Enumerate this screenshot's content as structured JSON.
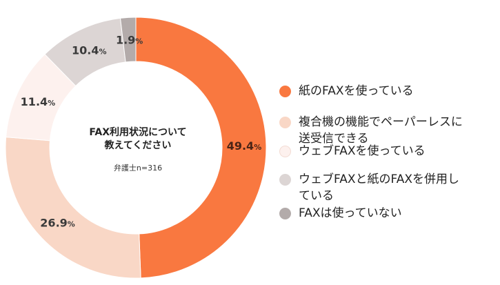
{
  "chart_data": {
    "type": "pie",
    "title_lines": [
      "FAX利用状況について",
      "教えてください"
    ],
    "subtitle": "弁護士n=316",
    "slices": [
      {
        "name": "紙のFAXを使っている",
        "value": 49.4,
        "color": "#F97840",
        "label_color": "#4A2416"
      },
      {
        "name": "複合機の機能でペーパーレスに送受信できる",
        "value": 26.9,
        "color": "#F9D7C6",
        "label_color": "#3A3A3A"
      },
      {
        "name": "ウェブFAXを使っている",
        "value": 11.4,
        "color": "#FDF1EE",
        "label_color": "#3A3A3A"
      },
      {
        "name": "ウェブFAXと紙のFAXを併用している",
        "value": 10.4,
        "color": "#DCD5D4",
        "label_color": "#3A3A3A"
      },
      {
        "name": "FAXは使っていない",
        "value": 1.9,
        "color": "#B3ABAA",
        "label_color": "#3A3A3A"
      }
    ],
    "unit": "%"
  },
  "legend": {
    "items": [
      {
        "lines": [
          "紙のFAXを使っている"
        ]
      },
      {
        "lines": [
          "複合機の機能でペーパーレスに",
          "送受信できる"
        ]
      },
      {
        "lines": [
          "ウェブFAXを使っている"
        ]
      },
      {
        "lines": [
          "ウェブFAXと紙のFAXを併用し",
          "ている"
        ]
      },
      {
        "lines": [
          "FAXは使っていない"
        ]
      }
    ]
  }
}
